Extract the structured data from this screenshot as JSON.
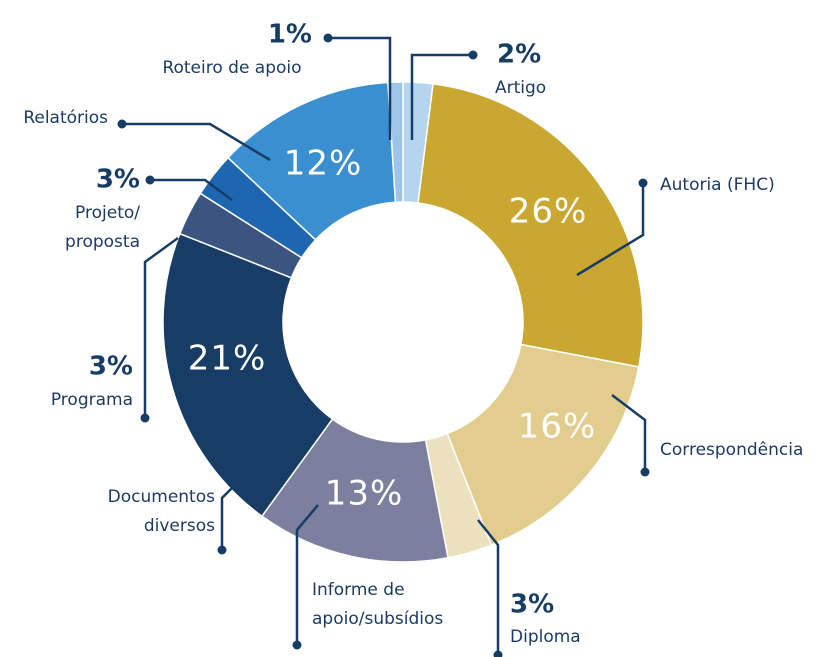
{
  "chart_data": {
    "type": "donut",
    "categories": [
      "Artigo",
      "Autoria (FHC)",
      "Correspondência",
      "Diploma",
      "Informe de\napoio/subsídios",
      "Documentos\ndiversos",
      "Programa",
      "Projeto/\nproposta",
      "Relatórios",
      "Roteiro de apoio"
    ],
    "values": [
      2,
      26,
      16,
      3,
      13,
      21,
      3,
      3,
      12,
      1
    ],
    "value_labels": [
      "2%",
      "26%",
      "16%",
      "3%",
      "13%",
      "21%",
      "3%",
      "3%",
      "12%",
      "1%"
    ],
    "colors": [
      "#b5d5ef",
      "#c9a730",
      "#e3cd8e",
      "#ede0bd",
      "#7c7f9e",
      "#173d66",
      "#3c5580",
      "#1f66b0",
      "#3a8fd0",
      "#9cc5e8"
    ]
  }
}
